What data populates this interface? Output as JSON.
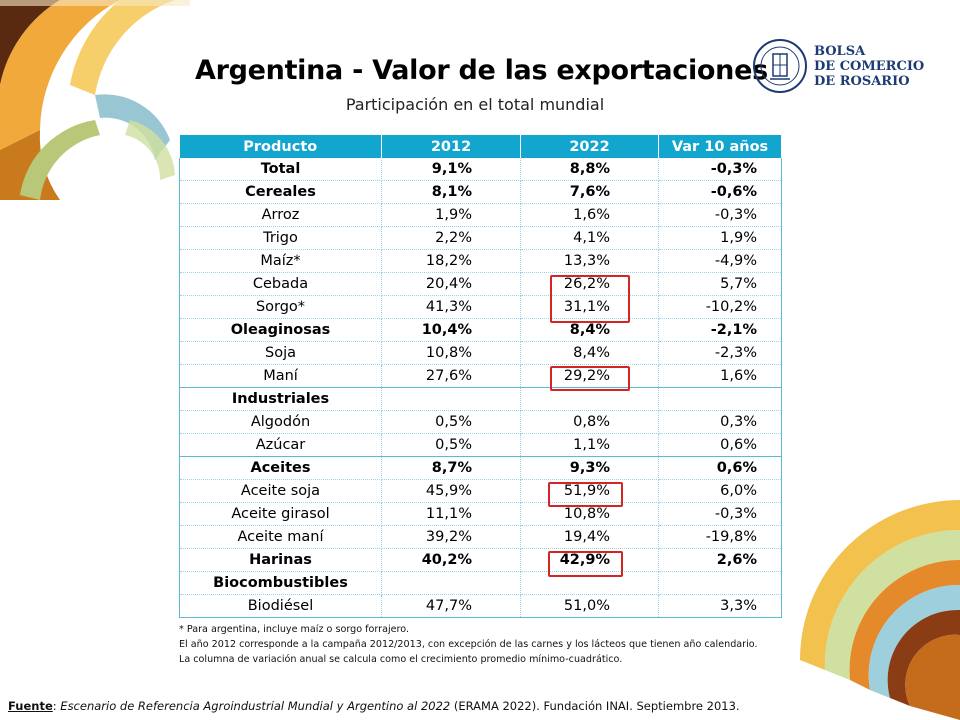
{
  "title": "Argentina - Valor de las exportaciones",
  "subtitle": "Participación en el total mundial",
  "logo": {
    "line1": "BOLSA",
    "line2": "DE COMERCIO",
    "line3": "DE ROSARIO"
  },
  "table": {
    "headers": [
      "Producto",
      "2012",
      "2022",
      "Var 10 años"
    ],
    "rows": [
      {
        "producto": "Total",
        "y2012": "9,1%",
        "y2022": "8,8%",
        "var": "-0,3%"
      },
      {
        "producto": "Cereales",
        "y2012": "8,1%",
        "y2022": "7,6%",
        "var": "-0,6%"
      },
      {
        "producto": "Arroz",
        "y2012": "1,9%",
        "y2022": "1,6%",
        "var": "-0,3%"
      },
      {
        "producto": "Trigo",
        "y2012": "2,2%",
        "y2022": "4,1%",
        "var": "1,9%"
      },
      {
        "producto": "Maíz*",
        "y2012": "18,2%",
        "y2022": "13,3%",
        "var": "-4,9%"
      },
      {
        "producto": "Cebada",
        "y2012": "20,4%",
        "y2022": "26,2%",
        "var": "5,7%"
      },
      {
        "producto": "Sorgo*",
        "y2012": "41,3%",
        "y2022": "31,1%",
        "var": "-10,2%"
      },
      {
        "producto": "Oleaginosas",
        "y2012": "10,4%",
        "y2022": "8,4%",
        "var": "-2,1%"
      },
      {
        "producto": "Soja",
        "y2012": "10,8%",
        "y2022": "8,4%",
        "var": "-2,3%"
      },
      {
        "producto": "Maní",
        "y2012": "27,6%",
        "y2022": "29,2%",
        "var": "1,6%"
      },
      {
        "producto": "Industriales",
        "y2012": "",
        "y2022": "",
        "var": ""
      },
      {
        "producto": "Algodón",
        "y2012": "0,5%",
        "y2022": "0,8%",
        "var": "0,3%"
      },
      {
        "producto": "Azúcar",
        "y2012": "0,5%",
        "y2022": "1,1%",
        "var": "0,6%"
      },
      {
        "producto": "Aceites",
        "y2012": "8,7%",
        "y2022": "9,3%",
        "var": "0,6%"
      },
      {
        "producto": "Aceite soja",
        "y2012": "45,9%",
        "y2022": "51,9%",
        "var": "6,0%"
      },
      {
        "producto": "Aceite girasol",
        "y2012": "11,1%",
        "y2022": "10,8%",
        "var": "-0,3%"
      },
      {
        "producto": "Aceite maní",
        "y2012": "39,2%",
        "y2022": "19,4%",
        "var": "-19,8%"
      },
      {
        "producto": "Harinas",
        "y2012": "40,2%",
        "y2022": "42,9%",
        "var": "2,6%"
      },
      {
        "producto": "Biocombustibles",
        "y2012": "",
        "y2022": "",
        "var": ""
      },
      {
        "producto": "Biodiésel",
        "y2012": "47,7%",
        "y2022": "51,0%",
        "var": "3,3%"
      }
    ]
  },
  "notes": [
    "* Para argentina, incluye maíz o sorgo forrajero.",
    "El año 2012 corresponde a la campaña 2012/2013, con excepción de las carnes y los lácteos que tienen año calendario.",
    "La columna de variación anual se calcula como el crecimiento promedio mínimo-cuadrático."
  ],
  "source": {
    "label": "Fuente",
    "sep": ": ",
    "italic": "Escenario de Referencia Agroindustrial Mundial y Argentino al 2022",
    "rest": " (ERAMA 2022). Fundación INAI. Septiembre 2013."
  }
}
